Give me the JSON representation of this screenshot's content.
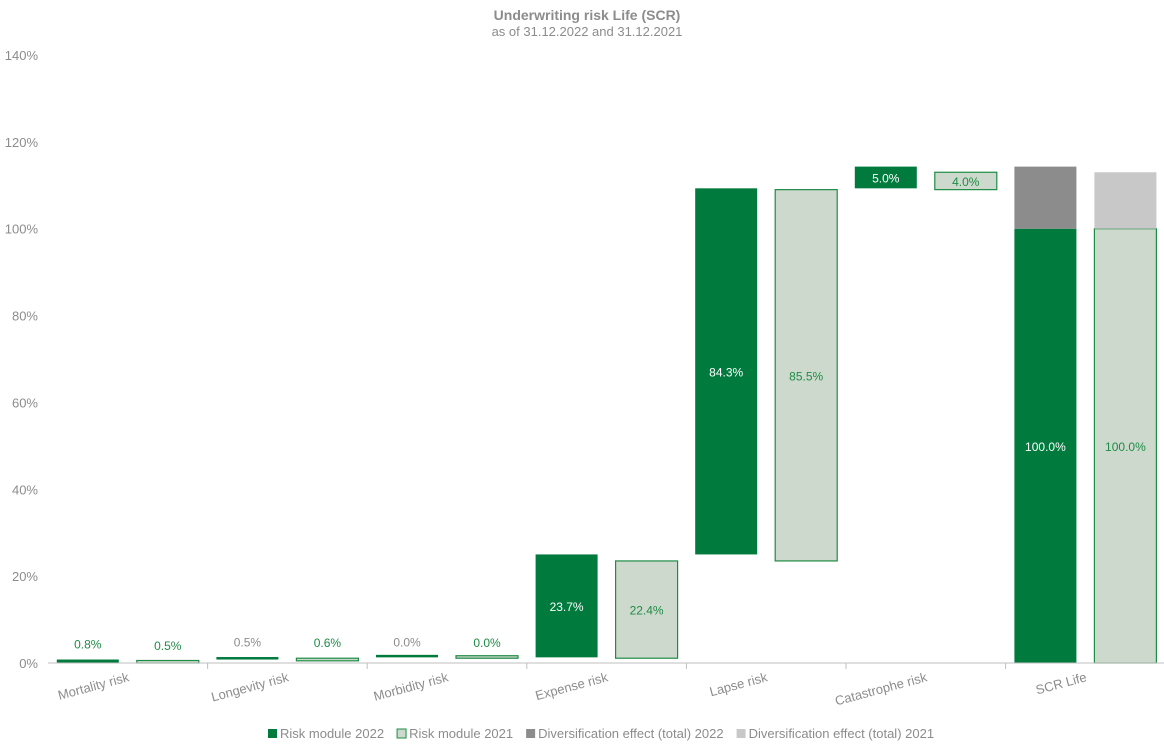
{
  "chart_data": {
    "type": "bar",
    "title": "Underwriting risk Life (SCR)",
    "subtitle": "as of 31.12.2022 and 31.12.2021",
    "categories": [
      "Mortality risk",
      "Longevity risk",
      "Morbidity risk",
      "Expense risk",
      "Lapse risk",
      "Catastrophe risk",
      "SCR Life"
    ],
    "ylim": [
      0,
      140
    ],
    "yticks": [
      "0%",
      "20%",
      "40%",
      "60%",
      "80%",
      "100%",
      "120%",
      "140%"
    ],
    "grid": false,
    "legend_position": "bottom",
    "series": [
      {
        "name": "Risk module 2022",
        "color": "#007A3D",
        "label_color": "#ffffff",
        "bars": [
          {
            "category": "Mortality risk",
            "base": 0.0,
            "value": 0.8,
            "label": "0.8%",
            "label_color": "#1E8C45"
          },
          {
            "category": "Longevity risk",
            "base": 0.8,
            "value": 0.5,
            "label": "0.5%",
            "label_color": "#8C8C8C"
          },
          {
            "category": "Morbidity risk",
            "base": 1.3,
            "value": 0.0,
            "label": "0.0%",
            "label_color": "#8C8C8C"
          },
          {
            "category": "Expense risk",
            "base": 1.3,
            "value": 23.7,
            "label": "23.7%"
          },
          {
            "category": "Lapse risk",
            "base": 25.0,
            "value": 84.3,
            "label": "84.3%"
          },
          {
            "category": "Catastrophe risk",
            "base": 109.3,
            "value": 5.0,
            "label": "5.0%"
          },
          {
            "category": "SCR Life",
            "base": 0.0,
            "value": 100.0,
            "label": "100.0%"
          }
        ]
      },
      {
        "name": "Risk module 2021",
        "color": "#CDD9CD",
        "border": "#1E8C45",
        "label_color": "#1E8C45",
        "bars": [
          {
            "category": "Mortality risk",
            "base": 0.0,
            "value": 0.5,
            "label": "0.5%"
          },
          {
            "category": "Longevity risk",
            "base": 0.5,
            "value": 0.6,
            "label": "0.6%"
          },
          {
            "category": "Morbidity risk",
            "base": 1.1,
            "value": 0.0,
            "label": "0.0%"
          },
          {
            "category": "Expense risk",
            "base": 1.1,
            "value": 22.4,
            "label": "22.4%"
          },
          {
            "category": "Lapse risk",
            "base": 23.5,
            "value": 85.5,
            "label": "85.5%"
          },
          {
            "category": "Catastrophe risk",
            "base": 109.0,
            "value": 4.0,
            "label": "4.0%"
          },
          {
            "category": "SCR Life",
            "base": 0.0,
            "value": 100.0,
            "label": "100.0%"
          }
        ]
      },
      {
        "name": "Diversification effect (total) 2022",
        "color": "#8C8C8C",
        "bars": [
          {
            "category": "SCR Life",
            "base": 100.0,
            "value": 14.3
          }
        ]
      },
      {
        "name": "Diversification effect (total) 2021",
        "color": "#C8C8C8",
        "bars": [
          {
            "category": "SCR Life",
            "base": 100.0,
            "value": 13.0
          }
        ]
      }
    ]
  }
}
